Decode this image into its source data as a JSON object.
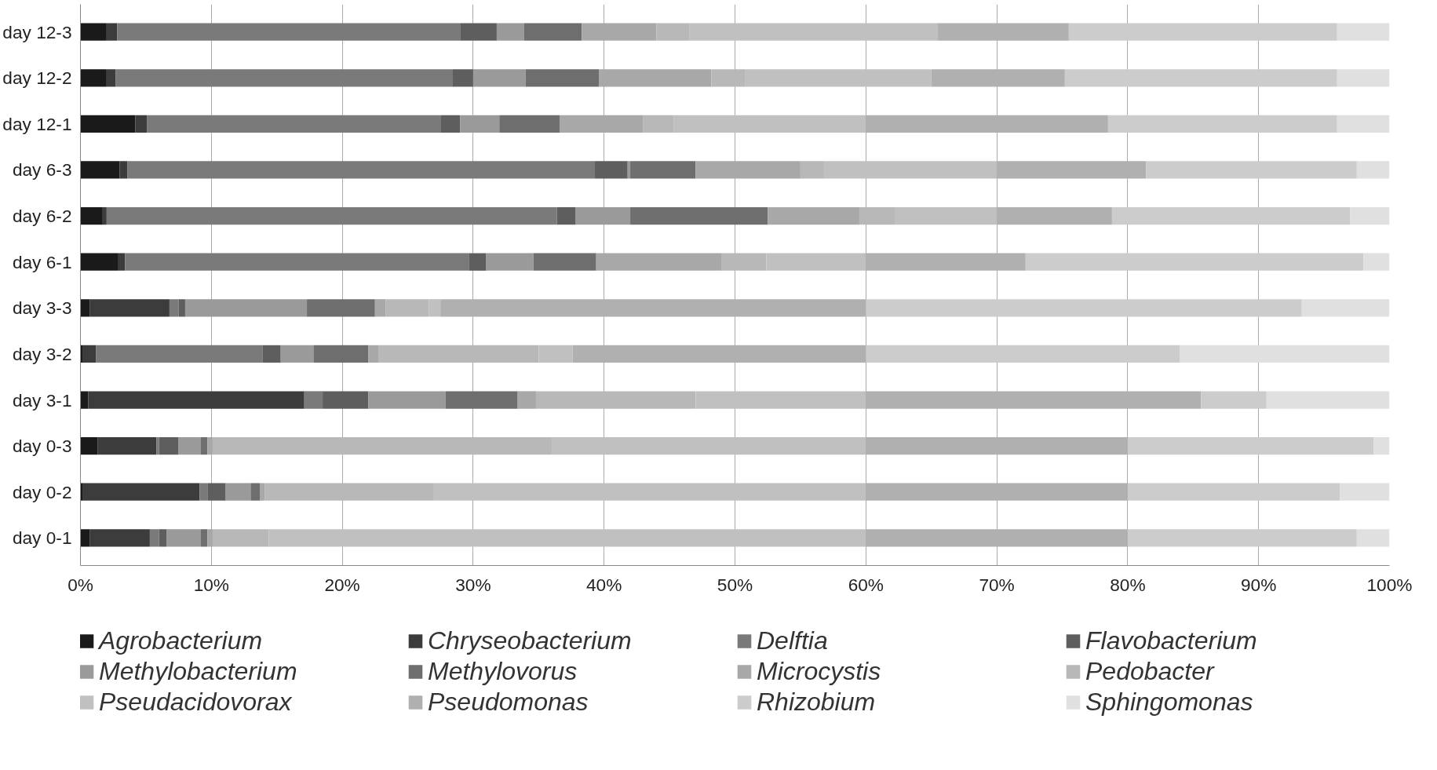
{
  "chart_data": {
    "type": "bar",
    "orientation": "horizontal",
    "stacked": true,
    "categories": [
      "day 12-3",
      "day 12-2",
      "day 12-1",
      "day 6-3",
      "day 6-2",
      "day 6-1",
      "day 3-3",
      "day 3-2",
      "day 3-1",
      "day 0-3",
      "day 0-2",
      "day 0-1"
    ],
    "xlim": [
      0,
      100
    ],
    "xticks": [
      {
        "value": 0,
        "label": "0%"
      },
      {
        "value": 10,
        "label": "10%"
      },
      {
        "value": 20,
        "label": "20%"
      },
      {
        "value": 30,
        "label": "30%"
      },
      {
        "value": 40,
        "label": "40%"
      },
      {
        "value": 50,
        "label": "50%"
      },
      {
        "value": 60,
        "label": "60%"
      },
      {
        "value": 70,
        "label": "70%"
      },
      {
        "value": 80,
        "label": "80%"
      },
      {
        "value": 90,
        "label": "90%"
      },
      {
        "value": 100,
        "label": "100%"
      }
    ],
    "grid": "x",
    "legend": "bottom",
    "series": [
      {
        "name": "Agrobacterium",
        "color": "#1a1a1a",
        "values": [
          2.0,
          2.0,
          4.2,
          3.0,
          1.7,
          2.9,
          0.7,
          0.2,
          0.6,
          1.3,
          0.2,
          0.7
        ]
      },
      {
        "name": "Chryseobacterium",
        "color": "#3c3c3c",
        "values": [
          0.8,
          0.7,
          0.9,
          0.6,
          0.3,
          0.5,
          6.1,
          1.0,
          16.5,
          4.5,
          8.9,
          4.6
        ]
      },
      {
        "name": "Delftia",
        "color": "#7a7a7a",
        "values": [
          26.2,
          25.7,
          22.4,
          35.7,
          34.4,
          26.3,
          0.7,
          12.7,
          1.4,
          0.2,
          0.6,
          0.7
        ]
      },
      {
        "name": "Flavobacterium",
        "color": "#5e5e5e",
        "values": [
          2.8,
          1.6,
          1.5,
          2.5,
          1.4,
          1.3,
          0.5,
          1.4,
          3.5,
          1.5,
          1.4,
          0.6
        ]
      },
      {
        "name": "Methylobacterium",
        "color": "#9a9a9a",
        "values": [
          2.1,
          4.0,
          3.0,
          0.2,
          4.2,
          3.6,
          9.3,
          2.5,
          5.9,
          1.7,
          1.9,
          2.6
        ]
      },
      {
        "name": "Methylovorus",
        "color": "#6e6e6e",
        "values": [
          4.4,
          5.6,
          4.6,
          5.0,
          10.5,
          4.8,
          5.2,
          4.2,
          5.5,
          0.5,
          0.7,
          0.5
        ]
      },
      {
        "name": "Microcystis",
        "color": "#a8a8a8",
        "values": [
          5.7,
          8.6,
          6.4,
          8.0,
          7.0,
          9.6,
          0.8,
          0.8,
          1.4,
          0.4,
          0.4,
          0.4
        ]
      },
      {
        "name": "Pedobacter",
        "color": "#b8b8b8",
        "values": [
          2.5,
          2.6,
          2.3,
          1.8,
          2.7,
          3.4,
          3.3,
          12.2,
          12.2,
          25.9,
          12.9,
          4.3
        ]
      },
      {
        "name": "Pseudacidovorax",
        "color": "#c0c0c0",
        "values": [
          19.0,
          14.2,
          14.7,
          13.2,
          7.8,
          7.6,
          0.9,
          2.6,
          13.0,
          24.0,
          33.0,
          45.6
        ]
      },
      {
        "name": "Pseudomonas",
        "color": "#b0b0b0",
        "values": [
          10.0,
          10.2,
          18.5,
          11.4,
          8.8,
          12.2,
          32.5,
          22.4,
          25.6,
          20.0,
          20.0,
          20.0
        ]
      },
      {
        "name": "Rhizobium",
        "color": "#cccccc",
        "values": [
          20.5,
          20.8,
          17.5,
          16.1,
          18.2,
          25.8,
          33.3,
          24.0,
          5.0,
          18.8,
          16.2,
          17.5
        ]
      },
      {
        "name": "Sphingomonas",
        "color": "#e0e0e0",
        "values": [
          4.0,
          4.0,
          4.0,
          2.5,
          3.0,
          2.0,
          6.7,
          16.0,
          9.4,
          1.2,
          3.8,
          2.5
        ]
      }
    ]
  }
}
